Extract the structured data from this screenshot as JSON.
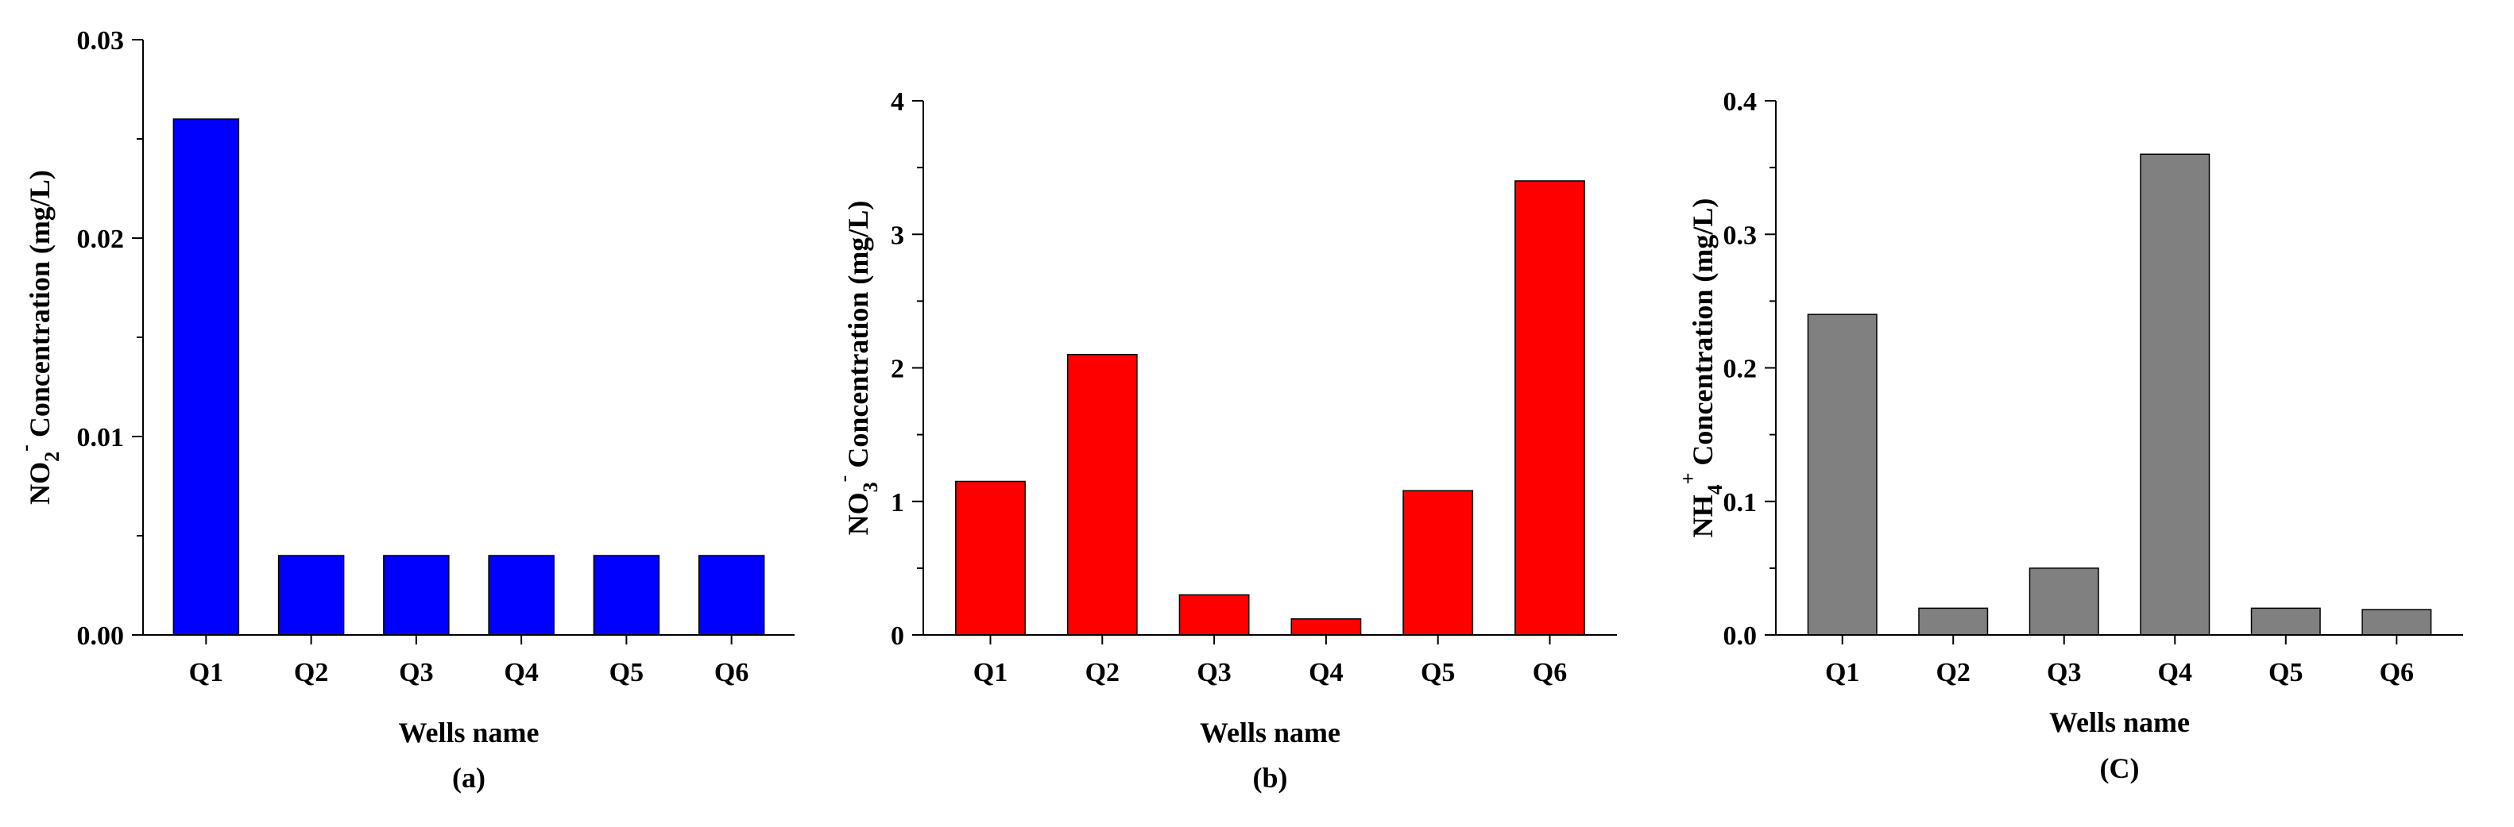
{
  "chart_data": [
    {
      "type": "bar",
      "caption": "(a)",
      "xlabel": "Wells name",
      "ylabel": {
        "base": "NO",
        "sub": "2",
        "sup": "-",
        "rest": " Concentration (mg/L)"
      },
      "categories": [
        "Q1",
        "Q2",
        "Q3",
        "Q4",
        "Q5",
        "Q6"
      ],
      "values": [
        0.026,
        0.004,
        0.004,
        0.004,
        0.004,
        0.004
      ],
      "ylim": [
        0,
        0.03
      ],
      "yticks": [
        0,
        0.01,
        0.02,
        0.03
      ],
      "ytick_labels": [
        "0.00",
        "0.01",
        "0.02",
        "0.03"
      ],
      "color": "#0000ff",
      "grid": false
    },
    {
      "type": "bar",
      "caption": "(b)",
      "xlabel": "Wells name",
      "ylabel": {
        "base": "NO",
        "sub": "3",
        "sup": "-",
        "rest": " Concentration (mg/L)"
      },
      "categories": [
        "Q1",
        "Q2",
        "Q3",
        "Q4",
        "Q5",
        "Q6"
      ],
      "values": [
        1.15,
        2.1,
        0.3,
        0.12,
        1.08,
        3.4
      ],
      "ylim": [
        0,
        4
      ],
      "yticks": [
        0,
        1,
        2,
        3,
        4
      ],
      "ytick_labels": [
        "0",
        "1",
        "2",
        "3",
        "4"
      ],
      "color": "#ff0000",
      "grid": false
    },
    {
      "type": "bar",
      "caption": "(C)",
      "xlabel": "Wells name",
      "ylabel": {
        "base": "NH",
        "sub": "4",
        "sup": "+",
        "rest": " Concentration (mg/L)"
      },
      "categories": [
        "Q1",
        "Q2",
        "Q3",
        "Q4",
        "Q5",
        "Q6"
      ],
      "values": [
        0.24,
        0.02,
        0.05,
        0.36,
        0.02,
        0.019
      ],
      "ylim": [
        0,
        0.4
      ],
      "yticks": [
        0,
        0.1,
        0.2,
        0.3,
        0.4
      ],
      "ytick_labels": [
        "0.0",
        "0.1",
        "0.2",
        "0.3",
        "0.4"
      ],
      "color": "#808080",
      "grid": false
    }
  ]
}
